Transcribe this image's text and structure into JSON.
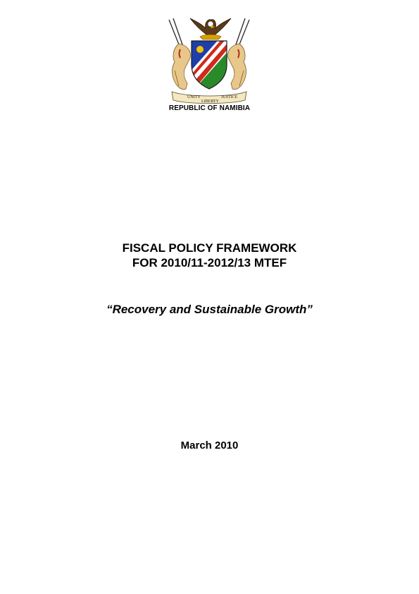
{
  "header": {
    "emblem_icon": "namibia-coat-of-arms-icon",
    "motto": [
      "UNITY",
      "LIBERTY",
      "JUSTICE"
    ],
    "country": "REPUBLIC OF NAMIBIA"
  },
  "document": {
    "title_line1": "FISCAL POLICY FRAMEWORK",
    "title_line2": "FOR 2010/11-2012/13 MTEF",
    "subtitle": "“Recovery and Sustainable Growth”",
    "date": "March 2010"
  }
}
